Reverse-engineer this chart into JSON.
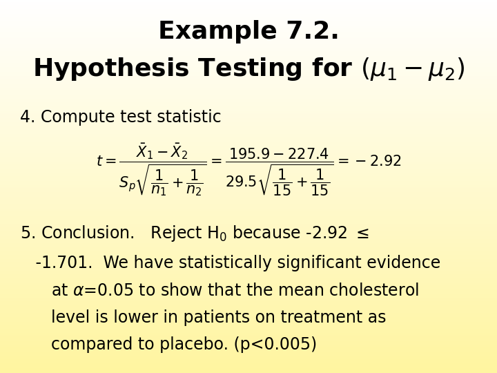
{
  "title_line1": "Example 7.2.",
  "title_line2": "Hypothesis Testing for $(μ_1-μ_2)$",
  "bg_color_top": "#FFF5A0",
  "bg_color_bottom": "#FFFFFF",
  "title_fontsize": 26,
  "body_fontsize": 17,
  "text_color": "#000000",
  "line4_label": "4. Compute test statistic",
  "line6_text": "   -1.701.  We have statistically significant evidence",
  "line8_text": "      level is lower in patients on treatment as",
  "line9_text": "      compared to placebo. (p<0.005)"
}
